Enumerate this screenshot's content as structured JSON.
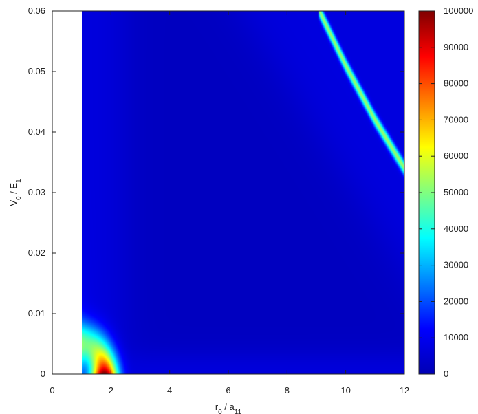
{
  "chart_data": {
    "type": "heatmap",
    "title": "",
    "xlabel": {
      "base": "r",
      "sub1": "0",
      "mid": " / a",
      "sub2": "11"
    },
    "ylabel": {
      "base": "V",
      "sub1": "0",
      "mid": " / E",
      "sub2": "1"
    },
    "xlim": [
      0,
      12
    ],
    "ylim": [
      0,
      0.06
    ],
    "x_ticks": [
      "0",
      "2",
      "4",
      "6",
      "8",
      "10",
      "12"
    ],
    "y_ticks": [
      "0",
      "0.01",
      "0.02",
      "0.03",
      "0.04",
      "0.05",
      "0.06"
    ],
    "data_x_range": [
      1,
      12
    ],
    "colorbar": {
      "range": [
        0,
        100000
      ],
      "ticks": [
        "0",
        "10000",
        "20000",
        "30000",
        "40000",
        "50000",
        "60000",
        "70000",
        "80000",
        "90000",
        "100000"
      ],
      "colormap": [
        "#0000b4",
        "#0000ff",
        "#0080ff",
        "#00ffff",
        "#80ff80",
        "#ffff00",
        "#ff8000",
        "#ff0000",
        "#800000"
      ]
    },
    "features": {
      "background_level": 7000,
      "valley_level": 2000,
      "resonance_curve": [
        [
          9.1,
          0.06
        ],
        [
          10.0,
          0.051
        ],
        [
          11.0,
          0.042
        ],
        [
          12.0,
          0.034
        ]
      ],
      "resonance_peak_level": 45000,
      "corner_peak_level": 95000
    }
  }
}
